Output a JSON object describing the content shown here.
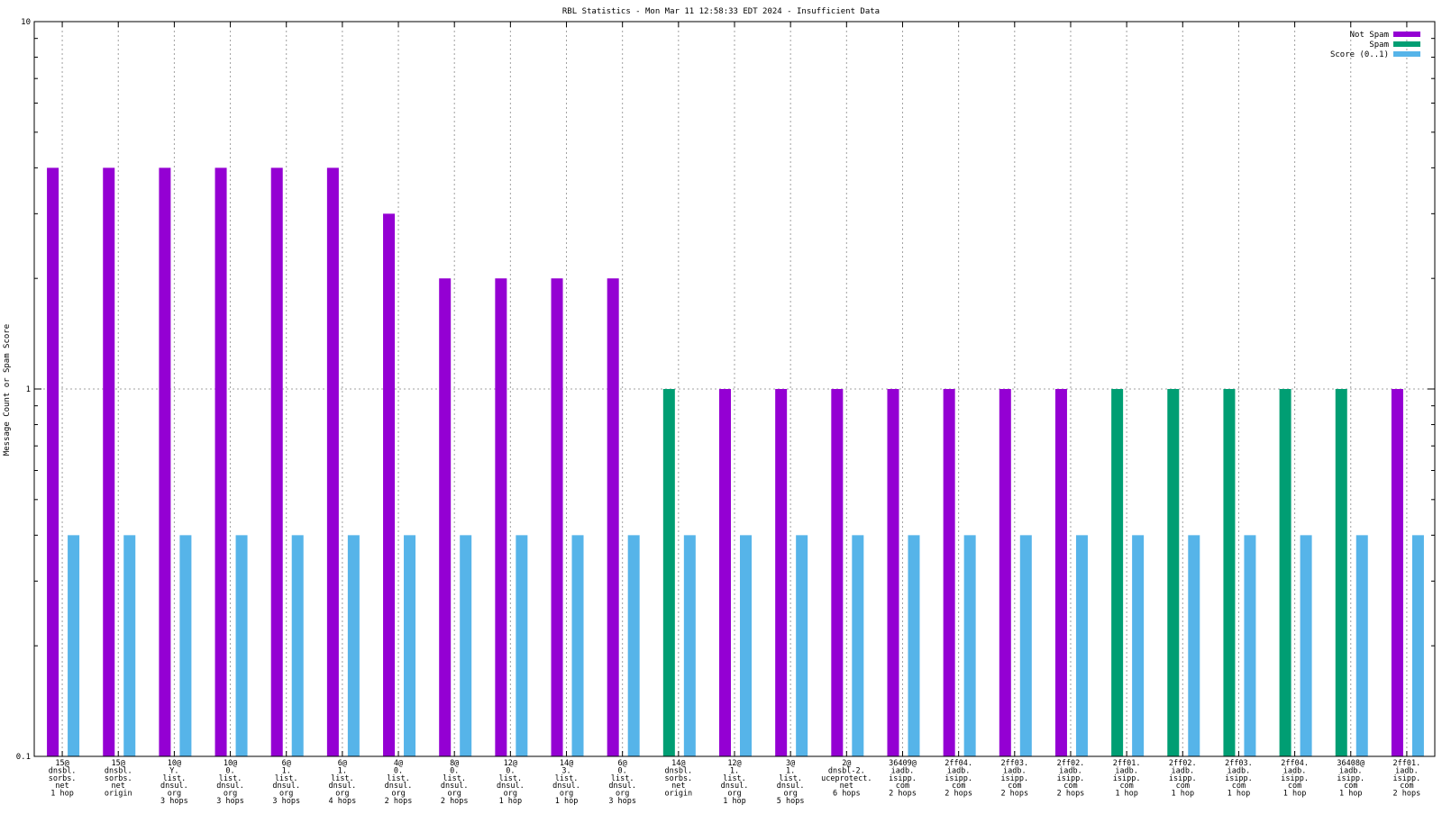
{
  "chart_data": {
    "type": "bar",
    "title": "RBL Statistics - Mon Mar 11 12:58:33 EDT 2024 - Insufficient Data",
    "ylabel": "Message Count or Spam Score",
    "xlabel": "",
    "yscale": "log",
    "ylim": [
      0.1,
      10
    ],
    "y_ticks": [
      "0.1",
      "1",
      "10"
    ],
    "grid": true,
    "legend_position": "top-right",
    "colors": {
      "not_spam": "#9400D3",
      "spam": "#009E73",
      "score": "#56B4E9",
      "grid": "#a0a0a0"
    },
    "categories": [
      [
        "15@",
        "dnsbl.",
        "sorbs.",
        "net",
        "1 hop"
      ],
      [
        "15@",
        "dnsbl.",
        "sorbs.",
        "net",
        "origin"
      ],
      [
        "10@",
        "Y.",
        "list.",
        "dnsul.",
        "org",
        "3 hops"
      ],
      [
        "10@",
        "0.",
        "list.",
        "dnsul.",
        "org",
        "3 hops"
      ],
      [
        "6@",
        "1.",
        "list.",
        "dnsul.",
        "org",
        "3 hops"
      ],
      [
        "6@",
        "1.",
        "list.",
        "dnsul.",
        "org",
        "4 hops"
      ],
      [
        "4@",
        "0.",
        "list.",
        "dnsul.",
        "org",
        "2 hops"
      ],
      [
        "8@",
        "0.",
        "list.",
        "dnsul.",
        "org",
        "2 hops"
      ],
      [
        "12@",
        "0.",
        "list.",
        "dnsul.",
        "org",
        "1 hop"
      ],
      [
        "14@",
        "3.",
        "list.",
        "dnsul.",
        "org",
        "1 hop"
      ],
      [
        "6@",
        "0.",
        "list.",
        "dnsul.",
        "org",
        "3 hops"
      ],
      [
        "14@",
        "dnsbl.",
        "sorbs.",
        "net",
        "origin"
      ],
      [
        "12@",
        "1.",
        "list.",
        "dnsul.",
        "org",
        "1 hop"
      ],
      [
        "3@",
        "1.",
        "list.",
        "dnsul.",
        "org",
        "5 hops"
      ],
      [
        "2@",
        "dnsbl-2.",
        "uceprotect.",
        "net",
        "6 hops"
      ],
      [
        "36409@",
        "iadb.",
        "isipp.",
        "com",
        "2 hops"
      ],
      [
        "2ff04.",
        "iadb.",
        "isipp.",
        "com",
        "2 hops"
      ],
      [
        "2ff03.",
        "iadb.",
        "isipp.",
        "com",
        "2 hops"
      ],
      [
        "2ff02.",
        "iadb.",
        "isipp.",
        "com",
        "2 hops"
      ],
      [
        "2ff01.",
        "iadb.",
        "isipp.",
        "com",
        "1 hop"
      ],
      [
        "2ff02.",
        "iadb.",
        "isipp.",
        "com",
        "1 hop"
      ],
      [
        "2ff03.",
        "iadb.",
        "isipp.",
        "com",
        "1 hop"
      ],
      [
        "2ff04.",
        "iadb.",
        "isipp.",
        "com",
        "1 hop"
      ],
      [
        "36408@",
        "iadb.",
        "isipp.",
        "com",
        "1 hop"
      ],
      [
        "2ff01.",
        "iadb.",
        "isipp.",
        "com",
        "2 hops"
      ]
    ],
    "series": [
      {
        "name": "Not Spam",
        "color_key": "not_spam",
        "values": [
          4,
          4,
          4,
          4,
          4,
          4,
          3,
          2,
          2,
          2,
          2,
          null,
          1,
          1,
          1,
          1,
          1,
          1,
          1,
          null,
          null,
          null,
          null,
          null,
          1
        ]
      },
      {
        "name": "Spam",
        "color_key": "spam",
        "values": [
          null,
          null,
          null,
          null,
          null,
          null,
          null,
          null,
          null,
          null,
          null,
          1,
          null,
          null,
          null,
          null,
          null,
          null,
          null,
          1,
          1,
          1,
          1,
          1,
          null
        ]
      },
      {
        "name": "Score (0..1)",
        "color_key": "score",
        "values": [
          0.4,
          0.4,
          0.4,
          0.4,
          0.4,
          0.4,
          0.4,
          0.4,
          0.4,
          0.4,
          0.4,
          0.4,
          0.4,
          0.4,
          0.4,
          0.4,
          0.4,
          0.4,
          0.4,
          0.4,
          0.4,
          0.4,
          0.4,
          0.4,
          0.4
        ]
      }
    ]
  }
}
